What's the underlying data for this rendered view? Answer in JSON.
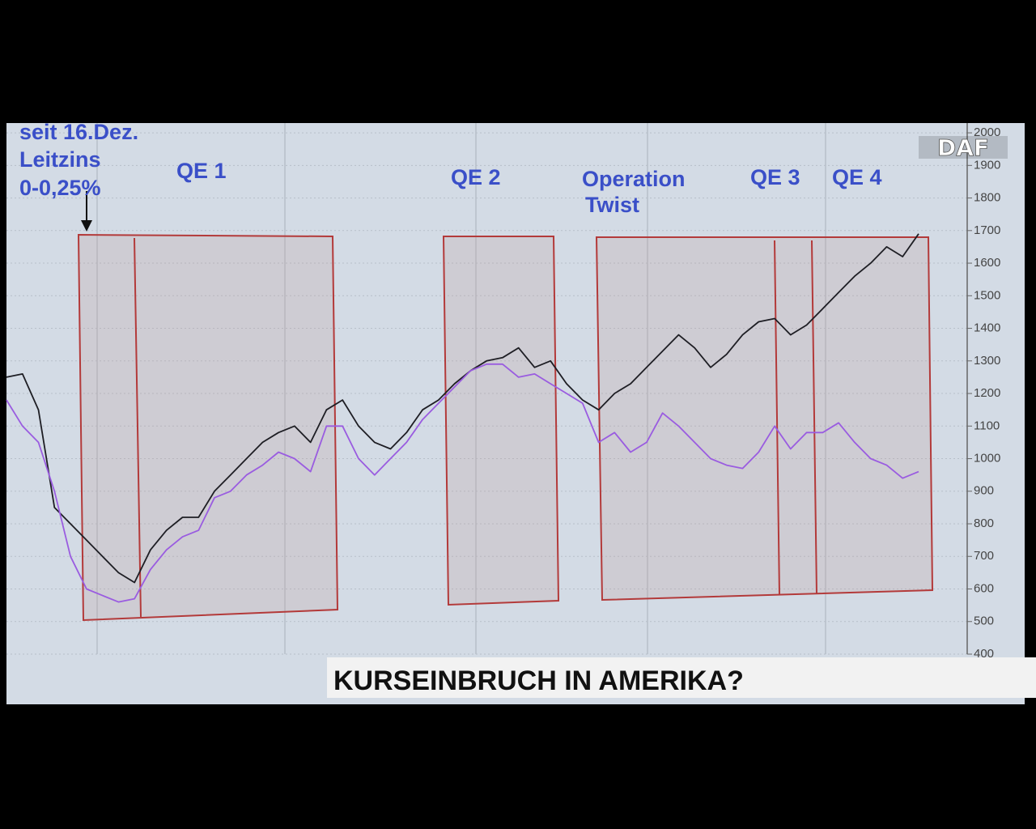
{
  "chart_data": {
    "type": "line",
    "annotations": [
      "seit 16.Dez.",
      "Leitzins",
      "0-0,25%",
      "QE 1",
      "QE 2",
      "Operation",
      "Twist",
      "QE 3",
      "QE 4"
    ],
    "series": [
      {
        "color": "#1e1e24",
        "values": [
          1250,
          1260,
          1150,
          850,
          800,
          750,
          700,
          650,
          620,
          720,
          780,
          820,
          820,
          900,
          950,
          1000,
          1050,
          1080,
          1100,
          1050,
          1150,
          1180,
          1100,
          1050,
          1030,
          1080,
          1150,
          1180,
          1230,
          1270,
          1300,
          1310,
          1340,
          1280,
          1300,
          1230,
          1180,
          1150,
          1200,
          1230,
          1280,
          1330,
          1380,
          1340,
          1280,
          1320,
          1380,
          1420,
          1430,
          1380,
          1410,
          1460,
          1510,
          1560,
          1600,
          1650,
          1620,
          1690
        ]
      },
      {
        "color": "#9a5ce0",
        "values": [
          1180,
          1100,
          1050,
          900,
          700,
          600,
          580,
          560,
          570,
          660,
          720,
          760,
          780,
          880,
          900,
          950,
          980,
          1020,
          1000,
          960,
          1100,
          1100,
          1000,
          950,
          1000,
          1050,
          1120,
          1170,
          1220,
          1270,
          1290,
          1290,
          1250,
          1260,
          1230,
          1200,
          1170,
          1050,
          1080,
          1020,
          1050,
          1140,
          1100,
          1050,
          1000,
          980,
          970,
          1020,
          1100,
          1030,
          1080,
          1080,
          1110,
          1050,
          1000,
          980,
          940,
          960
        ]
      }
    ],
    "ylim": [
      400,
      2030
    ],
    "yticks": [
      400,
      500,
      600,
      700,
      800,
      900,
      1000,
      1100,
      1200,
      1300,
      1400,
      1500,
      1600,
      1700,
      1800,
      1900,
      2000
    ],
    "grid": true
  },
  "logo": "DAF",
  "banner": "KURSEINBRUCH IN AMERIKA?"
}
